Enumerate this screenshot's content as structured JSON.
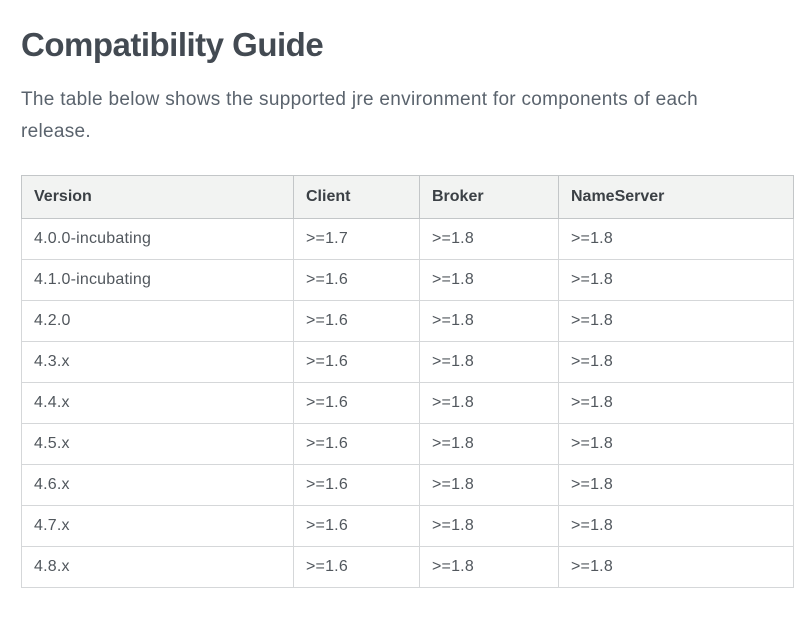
{
  "page": {
    "title": "Compatibility Guide",
    "intro": "The table below shows the supported jre environment for components of each release."
  },
  "table": {
    "columns": [
      "Version",
      "Client",
      "Broker",
      "NameServer"
    ],
    "rows": [
      [
        "4.0.0-incubating",
        ">=1.7",
        ">=1.8",
        ">=1.8"
      ],
      [
        "4.1.0-incubating",
        ">=1.6",
        ">=1.8",
        ">=1.8"
      ],
      [
        "4.2.0",
        ">=1.6",
        ">=1.8",
        ">=1.8"
      ],
      [
        "4.3.x",
        ">=1.6",
        ">=1.8",
        ">=1.8"
      ],
      [
        "4.4.x",
        ">=1.6",
        ">=1.8",
        ">=1.8"
      ],
      [
        "4.5.x",
        ">=1.6",
        ">=1.8",
        ">=1.8"
      ],
      [
        "4.6.x",
        ">=1.6",
        ">=1.8",
        ">=1.8"
      ],
      [
        "4.7.x",
        ">=1.6",
        ">=1.8",
        ">=1.8"
      ],
      [
        "4.8.x",
        ">=1.6",
        ">=1.8",
        ">=1.8"
      ]
    ]
  },
  "colors": {
    "heading_color": "#434a52",
    "body_text_color": "#5a636d",
    "cell_text_color": "#51575d",
    "header_text_color": "#3b4045",
    "table_header_bg": "#f2f3f2",
    "table_border": "#c3c6c8",
    "row_border": "#d5d7d9",
    "page_bg": "#ffffff"
  }
}
